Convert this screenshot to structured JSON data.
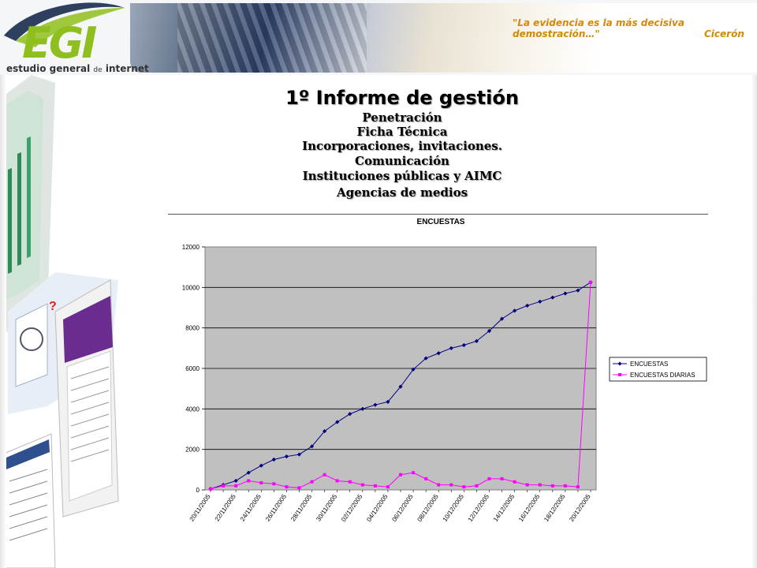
{
  "header": {
    "logo_text": "EGI",
    "logo_subtitle_a": "estudio general",
    "logo_subtitle_b": "de",
    "logo_subtitle_c": "internet",
    "quote": "\"La evidencia es la más decisiva demostración…\"",
    "quote_author": "Cicerón"
  },
  "titles": {
    "main": "1º Informe de gestión",
    "items": [
      "Penetración",
      "Ficha Técnica",
      "Incorporaciones, invitaciones.",
      "Comunicación",
      "Instituciones públicas y AIMC",
      "Agencias de medios"
    ]
  },
  "colors": {
    "series_1": "#000080",
    "series_2": "#ff00ff",
    "plot_bg": "#c0c0c0",
    "logo_green": "#8fbf1f",
    "quote_orange": "#d48a00"
  },
  "chart_data": {
    "type": "line",
    "title": "ENCUESTAS",
    "xlabel": "",
    "ylabel": "",
    "ylim": [
      0,
      12000
    ],
    "yticks": [
      0,
      2000,
      4000,
      6000,
      8000,
      10000,
      12000
    ],
    "grid": true,
    "legend_position": "right",
    "x": [
      "20/11/2005",
      "21/11/2005",
      "22/11/2005",
      "23/11/2005",
      "24/11/2005",
      "25/11/2005",
      "26/11/2005",
      "27/11/2005",
      "28/11/2005",
      "29/11/2005",
      "30/11/2005",
      "01/12/2005",
      "02/12/2005",
      "03/12/2005",
      "04/12/2005",
      "05/12/2005",
      "06/12/2005",
      "07/12/2005",
      "08/12/2005",
      "09/12/2005",
      "10/12/2005",
      "11/12/2005",
      "12/12/2005",
      "13/12/2005",
      "14/12/2005",
      "15/12/2005",
      "16/12/2005",
      "17/12/2005",
      "18/12/2005",
      "19/12/2005",
      "20/12/2005"
    ],
    "x_tick_labels": [
      "20/11/2005",
      "22/11/2005",
      "24/11/2005",
      "26/11/2005",
      "28/11/2005",
      "30/11/2005",
      "02/12/2005",
      "04/12/2005",
      "06/12/2005",
      "08/12/2005",
      "10/12/2005",
      "12/12/2005",
      "14/12/2005",
      "16/12/2005",
      "18/12/2005",
      "20/12/2005"
    ],
    "series": [
      {
        "name": "ENCUESTAS",
        "marker": "diamond",
        "values": [
          50,
          250,
          450,
          850,
          1200,
          1500,
          1650,
          1750,
          2150,
          2900,
          3350,
          3750,
          4000,
          4200,
          4350,
          5100,
          5950,
          6500,
          6750,
          7000,
          7150,
          7350,
          7850,
          8450,
          8850,
          9100,
          9300,
          9500,
          9700,
          9850,
          10250
        ]
      },
      {
        "name": "ENCUESTAS DIARIAS",
        "marker": "square",
        "values": [
          50,
          200,
          200,
          450,
          350,
          300,
          150,
          100,
          400,
          750,
          450,
          400,
          250,
          200,
          150,
          750,
          850,
          550,
          250,
          250,
          150,
          200,
          550,
          550,
          400,
          250,
          250,
          200,
          200,
          150,
          10250
        ]
      }
    ]
  }
}
